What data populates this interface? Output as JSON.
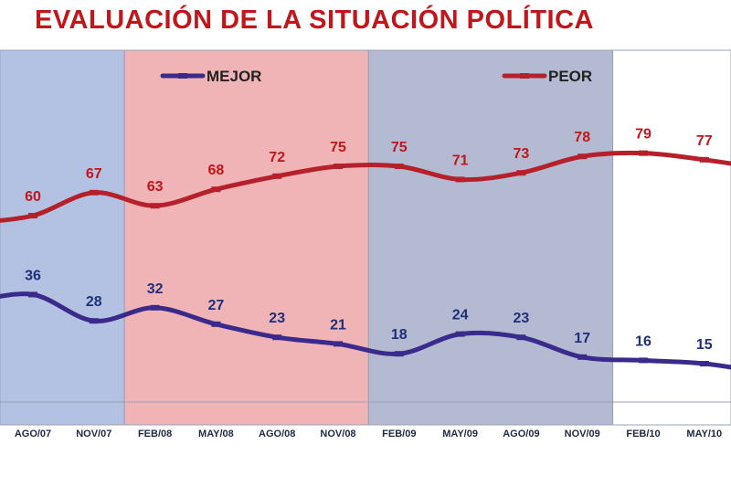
{
  "title": "EVALUACIÓN DE LA SITUACIÓN POLÍTICA",
  "chart_data": {
    "type": "line",
    "title": "EVALUACIÓN DE LA SITUACIÓN POLÍTICA",
    "categories": [
      "AGO/07",
      "NOV/07",
      "FEB/08",
      "MAY/08",
      "AGO/08",
      "NOV/08",
      "FEB/09",
      "MAY/09",
      "AGO/09",
      "NOV/09",
      "FEB/10",
      "MAY/10"
    ],
    "series": [
      {
        "name": "MEJOR",
        "values": [
          36,
          28,
          32,
          27,
          23,
          21,
          18,
          24,
          23,
          17,
          16,
          15
        ],
        "color": "#3a2a8c",
        "label_color": "#1f2f7a"
      },
      {
        "name": "PEOR",
        "values": [
          60,
          67,
          63,
          68,
          72,
          75,
          75,
          71,
          73,
          78,
          79,
          77
        ],
        "color": "#b5202a",
        "label_color": "#c0171c"
      }
    ],
    "legend": "top",
    "grid": false,
    "period_bands": [
      {
        "categories": [
          "AGO/07",
          "NOV/07"
        ],
        "color": "#b3c2e2"
      },
      {
        "categories": [
          "FEB/08",
          "MAY/08",
          "AGO/08",
          "NOV/08"
        ],
        "color": "#f0b3b6"
      },
      {
        "categories": [
          "FEB/09",
          "MAY/09",
          "AGO/09",
          "NOV/09"
        ],
        "color": "#b4bad1"
      },
      {
        "categories": [
          "FEB/10",
          "MAY/10"
        ],
        "color": "#ffffff"
      }
    ]
  }
}
